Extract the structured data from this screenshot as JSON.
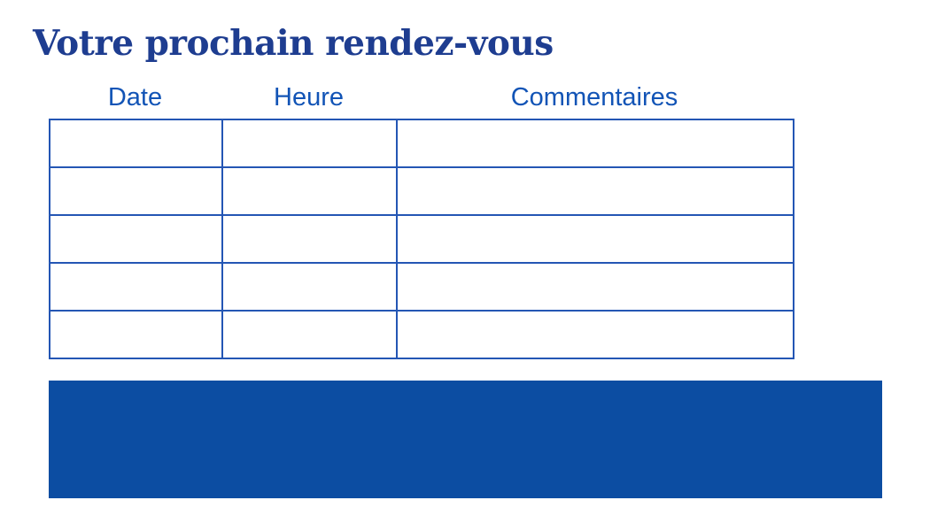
{
  "page": {
    "title": "Votre prochain rendez-vous"
  },
  "table": {
    "headers": [
      "Date",
      "Heure",
      "Commentaires"
    ],
    "rows": [
      [
        "",
        "",
        ""
      ],
      [
        "",
        "",
        ""
      ],
      [
        "",
        "",
        ""
      ],
      [
        "",
        "",
        ""
      ],
      [
        "",
        "",
        ""
      ]
    ]
  },
  "colors": {
    "title_text": "#1e3d90",
    "header_text": "#1254b6",
    "table_border": "#2456b4",
    "banner_fill": "#0c4da2",
    "page_background": "#ffffff"
  }
}
